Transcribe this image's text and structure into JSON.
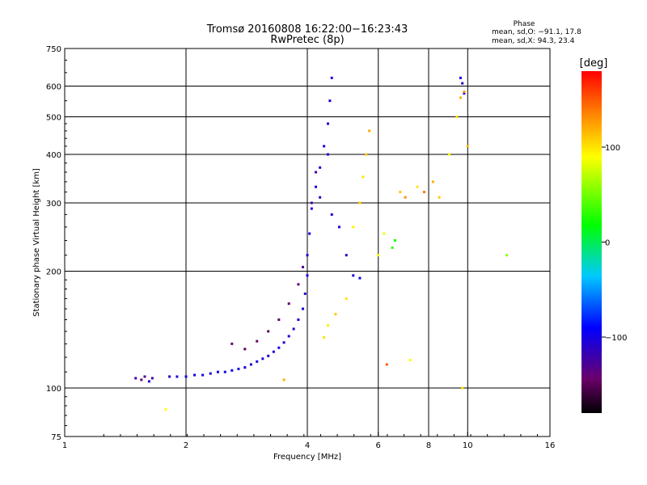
{
  "chart_data": {
    "type": "scatter",
    "title": "Tromsø 20160808 16:22:00−16:23:43",
    "subtitle": "RwPretec (8p)",
    "xlabel": "Frequency [MHz]",
    "ylabel": "Stationary phase Virtual Height [km]",
    "x_scale": "log2",
    "y_scale": "log",
    "xlim": [
      1,
      16
    ],
    "ylim": [
      75,
      750
    ],
    "x_ticks": [
      1,
      2,
      4,
      6,
      8,
      10,
      16
    ],
    "x_tick_labels": [
      "1",
      "2",
      "4",
      "6",
      "8",
      "10",
      "16"
    ],
    "y_ticks": [
      75,
      100,
      200,
      300,
      400,
      500,
      600,
      750
    ],
    "y_tick_labels": [
      "75",
      "100",
      "200",
      "300",
      "400",
      "500",
      "600",
      "750"
    ],
    "x_gridlines": [
      2,
      4,
      6,
      8,
      10
    ],
    "y_gridlines": [
      100,
      200,
      300,
      400,
      500,
      600
    ],
    "phase_stats": {
      "heading": "Phase",
      "line1": "mean, sd,O: −91.1, 17.8",
      "line2": "mean, sd,X:  94.3, 23.4"
    },
    "colorbar": {
      "label": "[deg]",
      "range": [
        -180,
        180
      ],
      "tick_values": [
        100,
        0,
        -100
      ],
      "tick_labels": [
        "100",
        "0",
        "−100"
      ],
      "colormap": "rainbow"
    },
    "series": [
      {
        "mode": "O",
        "description_color": "blue-purple",
        "points": [
          [
            1.5,
            106,
            -120
          ],
          [
            1.55,
            105,
            -140
          ],
          [
            1.58,
            107,
            -130
          ],
          [
            1.62,
            104,
            -110
          ],
          [
            1.65,
            106,
            -125
          ],
          [
            1.82,
            107,
            -110
          ],
          [
            1.9,
            107,
            -105
          ],
          [
            2.0,
            107,
            -100
          ],
          [
            2.1,
            108,
            -100
          ],
          [
            2.2,
            108,
            -105
          ],
          [
            2.3,
            109,
            -100
          ],
          [
            2.4,
            110,
            -95
          ],
          [
            2.5,
            110,
            -100
          ],
          [
            2.6,
            111,
            -95
          ],
          [
            2.7,
            112,
            -100
          ],
          [
            2.8,
            113,
            -100
          ],
          [
            2.9,
            115,
            -105
          ],
          [
            3.0,
            117,
            -100
          ],
          [
            3.1,
            119,
            -105
          ],
          [
            3.2,
            121,
            -100
          ],
          [
            3.3,
            124,
            -105
          ],
          [
            3.4,
            127,
            -100
          ],
          [
            3.5,
            131,
            -105
          ],
          [
            3.6,
            136,
            -100
          ],
          [
            3.7,
            142,
            -110
          ],
          [
            3.8,
            150,
            -100
          ],
          [
            3.9,
            160,
            -100
          ],
          [
            3.95,
            175,
            -105
          ],
          [
            4.0,
            195,
            -100
          ],
          [
            4.0,
            220,
            -110
          ],
          [
            4.05,
            250,
            -100
          ],
          [
            4.1,
            290,
            -105
          ],
          [
            4.2,
            330,
            -100
          ],
          [
            4.3,
            370,
            -105
          ],
          [
            4.4,
            420,
            -100
          ],
          [
            4.5,
            480,
            -105
          ],
          [
            4.55,
            550,
            -100
          ],
          [
            4.6,
            630,
            -105
          ],
          [
            2.6,
            130,
            -140
          ],
          [
            2.8,
            126,
            -150
          ],
          [
            3.0,
            132,
            -145
          ],
          [
            3.2,
            140,
            -150
          ],
          [
            3.4,
            150,
            -140
          ],
          [
            3.6,
            165,
            -145
          ],
          [
            3.8,
            185,
            -140
          ],
          [
            3.9,
            205,
            -130
          ],
          [
            4.1,
            300,
            -120
          ],
          [
            4.2,
            360,
            -125
          ],
          [
            4.3,
            310,
            -110
          ],
          [
            4.5,
            400,
            -110
          ],
          [
            4.6,
            280,
            -100
          ],
          [
            4.8,
            260,
            -105
          ],
          [
            5.0,
            220,
            -110
          ],
          [
            5.2,
            195,
            -100
          ],
          [
            5.4,
            192,
            -95
          ],
          [
            9.6,
            630,
            -100
          ],
          [
            9.7,
            610,
            -110
          ],
          [
            9.8,
            575,
            -95
          ]
        ]
      },
      {
        "mode": "X",
        "description_color": "yellow-orange",
        "points": [
          [
            1.78,
            88,
            90
          ],
          [
            3.5,
            105,
            120
          ],
          [
            4.4,
            135,
            100
          ],
          [
            4.5,
            145,
            95
          ],
          [
            4.7,
            155,
            110
          ],
          [
            5.0,
            170,
            100
          ],
          [
            5.2,
            260,
            95
          ],
          [
            5.4,
            300,
            105
          ],
          [
            5.5,
            350,
            100
          ],
          [
            5.6,
            400,
            110
          ],
          [
            5.7,
            460,
            120
          ],
          [
            6.0,
            220,
            90
          ],
          [
            6.2,
            250,
            85
          ],
          [
            6.5,
            230,
            30
          ],
          [
            6.6,
            240,
            20
          ],
          [
            6.8,
            320,
            110
          ],
          [
            7.0,
            310,
            130
          ],
          [
            7.5,
            330,
            100
          ],
          [
            7.8,
            320,
            140
          ],
          [
            8.2,
            340,
            120
          ],
          [
            8.5,
            310,
            110
          ],
          [
            9.0,
            400,
            95
          ],
          [
            9.4,
            500,
            100
          ],
          [
            9.6,
            560,
            120
          ],
          [
            9.8,
            580,
            130
          ],
          [
            10.0,
            420,
            115
          ],
          [
            12.5,
            220,
            60
          ],
          [
            6.3,
            115,
            150
          ],
          [
            7.2,
            118,
            90
          ],
          [
            9.7,
            100,
            100
          ]
        ]
      }
    ]
  }
}
